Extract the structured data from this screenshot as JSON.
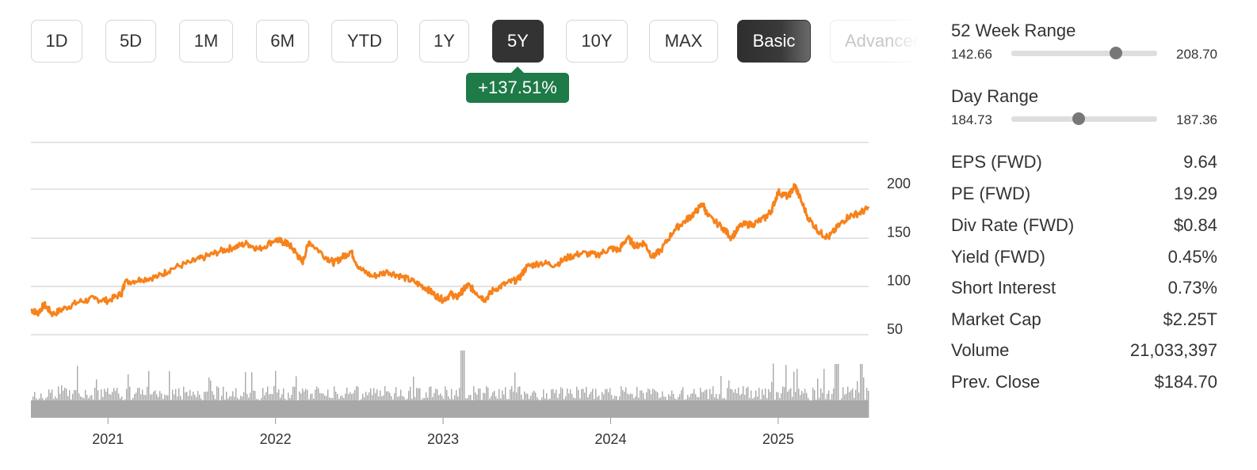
{
  "timeframes": [
    {
      "label": "1D",
      "left": 0
    },
    {
      "label": "5D"
    },
    {
      "label": "1M"
    },
    {
      "label": "6M"
    },
    {
      "label": "YTD"
    },
    {
      "label": "1Y"
    },
    {
      "label": "5Y",
      "active": true
    },
    {
      "label": "10Y"
    },
    {
      "label": "MAX"
    }
  ],
  "modes": {
    "basic": "Basic",
    "advanced": "Advanced"
  },
  "change_badge": "+137.51%",
  "stats": {
    "week52": {
      "title": "52 Week Range",
      "low": "142.66",
      "high": "208.70",
      "position": 0.72
    },
    "day": {
      "title": "Day Range",
      "low": "184.73",
      "high": "187.36",
      "position": 0.46
    },
    "rows": [
      {
        "label": "EPS (FWD)",
        "value": "9.64"
      },
      {
        "label": "PE (FWD)",
        "value": "19.29"
      },
      {
        "label": "Div Rate (FWD)",
        "value": "$0.84"
      },
      {
        "label": "Yield (FWD)",
        "value": "0.45%"
      },
      {
        "label": "Short Interest",
        "value": "0.73%"
      },
      {
        "label": "Market Cap",
        "value": "$2.25T"
      },
      {
        "label": "Volume",
        "value": "21,033,397"
      },
      {
        "label": "Prev. Close",
        "value": "$184.70"
      }
    ]
  },
  "chart_data": {
    "type": "line",
    "line_color": "#f7821b",
    "volume_color": "#a8a8a8",
    "x_range": [
      2020.54,
      2025.54
    ],
    "ylim": [
      0,
      250
    ],
    "y_ticks": [
      50,
      100,
      150,
      200
    ],
    "x_ticks": [
      {
        "value": 2021,
        "label": "2021"
      },
      {
        "value": 2022,
        "label": "2022"
      },
      {
        "value": 2023,
        "label": "2023"
      },
      {
        "value": 2024,
        "label": "2024"
      },
      {
        "value": 2025,
        "label": "2025"
      }
    ],
    "price_points": [
      [
        2020.54,
        76
      ],
      [
        2020.58,
        72
      ],
      [
        2020.62,
        81
      ],
      [
        2020.67,
        71
      ],
      [
        2020.75,
        78
      ],
      [
        2020.83,
        84
      ],
      [
        2020.92,
        87
      ],
      [
        2021.0,
        85
      ],
      [
        2021.08,
        92
      ],
      [
        2021.1,
        104
      ],
      [
        2021.2,
        107
      ],
      [
        2021.3,
        110
      ],
      [
        2021.38,
        118
      ],
      [
        2021.5,
        125
      ],
      [
        2021.58,
        130
      ],
      [
        2021.67,
        136
      ],
      [
        2021.75,
        140
      ],
      [
        2021.83,
        144
      ],
      [
        2021.9,
        138
      ],
      [
        2022.0,
        148
      ],
      [
        2022.05,
        145
      ],
      [
        2022.08,
        143
      ],
      [
        2022.12,
        135
      ],
      [
        2022.16,
        124
      ],
      [
        2022.2,
        146
      ],
      [
        2022.3,
        130
      ],
      [
        2022.35,
        124
      ],
      [
        2022.4,
        130
      ],
      [
        2022.45,
        136
      ],
      [
        2022.5,
        118
      ],
      [
        2022.58,
        110
      ],
      [
        2022.67,
        115
      ],
      [
        2022.75,
        110
      ],
      [
        2022.83,
        104
      ],
      [
        2022.9,
        98
      ],
      [
        2022.95,
        91
      ],
      [
        2023.0,
        86
      ],
      [
        2023.05,
        92
      ],
      [
        2023.08,
        88
      ],
      [
        2023.12,
        96
      ],
      [
        2023.15,
        101
      ],
      [
        2023.2,
        93
      ],
      [
        2023.25,
        86
      ],
      [
        2023.3,
        96
      ],
      [
        2023.38,
        103
      ],
      [
        2023.45,
        107
      ],
      [
        2023.5,
        120
      ],
      [
        2023.58,
        124
      ],
      [
        2023.67,
        122
      ],
      [
        2023.75,
        130
      ],
      [
        2023.83,
        134
      ],
      [
        2023.92,
        132
      ],
      [
        2024.0,
        139
      ],
      [
        2024.05,
        137
      ],
      [
        2024.1,
        150
      ],
      [
        2024.15,
        141
      ],
      [
        2024.2,
        145
      ],
      [
        2024.25,
        130
      ],
      [
        2024.3,
        137
      ],
      [
        2024.38,
        158
      ],
      [
        2024.45,
        168
      ],
      [
        2024.5,
        175
      ],
      [
        2024.55,
        185
      ],
      [
        2024.58,
        172
      ],
      [
        2024.67,
        160
      ],
      [
        2024.72,
        150
      ],
      [
        2024.78,
        163
      ],
      [
        2024.85,
        164
      ],
      [
        2024.92,
        170
      ],
      [
        2024.96,
        178
      ],
      [
        2025.0,
        197
      ],
      [
        2025.06,
        192
      ],
      [
        2025.1,
        204
      ],
      [
        2025.12,
        195
      ],
      [
        2025.18,
        170
      ],
      [
        2025.25,
        155
      ],
      [
        2025.3,
        150
      ],
      [
        2025.36,
        162
      ],
      [
        2025.42,
        172
      ],
      [
        2025.48,
        175
      ],
      [
        2025.54,
        180
      ]
    ]
  }
}
